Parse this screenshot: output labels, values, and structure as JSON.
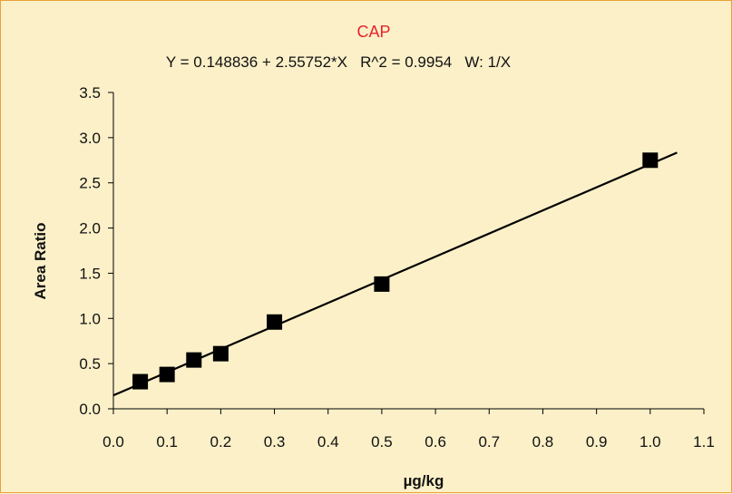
{
  "chart_data": {
    "type": "scatter",
    "title": "CAP",
    "subtitle": "Y = 0.148836 + 2.55752*X   R^2 = 0.9954   W: 1/X",
    "xlabel": "µg/kg",
    "ylabel": "Area Ratio",
    "xlim": [
      0.0,
      1.1
    ],
    "ylim": [
      0.0,
      3.5
    ],
    "x_ticks": [
      "0.0",
      "0.1",
      "0.2",
      "0.3",
      "0.4",
      "0.5",
      "0.6",
      "0.7",
      "0.8",
      "0.9",
      "1.0",
      "1.1"
    ],
    "y_ticks": [
      "0.0",
      "0.5",
      "1.0",
      "1.5",
      "2.0",
      "2.5",
      "3.0",
      "3.5"
    ],
    "grid": false,
    "series": [
      {
        "marker": "square",
        "color": "#000000",
        "points": [
          {
            "x": 0.05,
            "y": 0.3
          },
          {
            "x": 0.1,
            "y": 0.38
          },
          {
            "x": 0.15,
            "y": 0.54
          },
          {
            "x": 0.2,
            "y": 0.61
          },
          {
            "x": 0.3,
            "y": 0.96
          },
          {
            "x": 0.5,
            "y": 1.38
          },
          {
            "x": 1.0,
            "y": 2.75
          }
        ]
      }
    ],
    "fit_line": {
      "intercept": 0.148836,
      "slope": 2.55752,
      "x_range": [
        0.0,
        1.05
      ],
      "color": "#000000"
    }
  }
}
